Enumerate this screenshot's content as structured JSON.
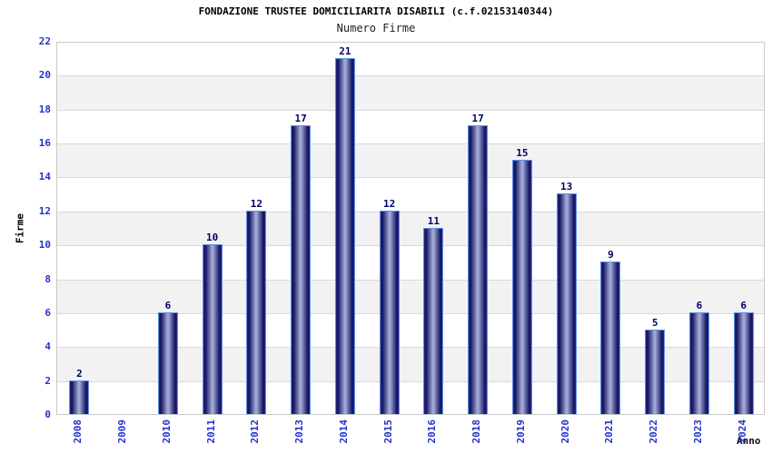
{
  "chart_data": {
    "type": "bar",
    "title": "FONDAZIONE TRUSTEE DOMICILIARITA DISABILI (c.f.02153140344)",
    "subtitle": "Numero Firme",
    "xlabel": "Anno",
    "ylabel": "Firme",
    "categories": [
      "2008",
      "2009",
      "2010",
      "2011",
      "2012",
      "2013",
      "2014",
      "2015",
      "2016",
      "2018",
      "2019",
      "2020",
      "2021",
      "2022",
      "2023",
      "2024"
    ],
    "values": [
      2,
      0,
      6,
      10,
      12,
      17,
      21,
      12,
      11,
      17,
      15,
      13,
      9,
      5,
      6,
      6
    ],
    "ylim": [
      0,
      22
    ],
    "ytick_step": 2,
    "grid": true,
    "legend_position": "none",
    "colors": {
      "tick_label": "#2233cc",
      "value_label": "#000066",
      "bar_border": "#5f90e2",
      "bar_edge_dark": "#12125f",
      "bar_outer": "#25258a",
      "bar_center_light": "#aab3de",
      "band": "#f2f2f2",
      "gridline": "#d9d9d9",
      "plot_border": "#c9c9c9",
      "title": "#000000",
      "subtitle": "#222222"
    }
  }
}
